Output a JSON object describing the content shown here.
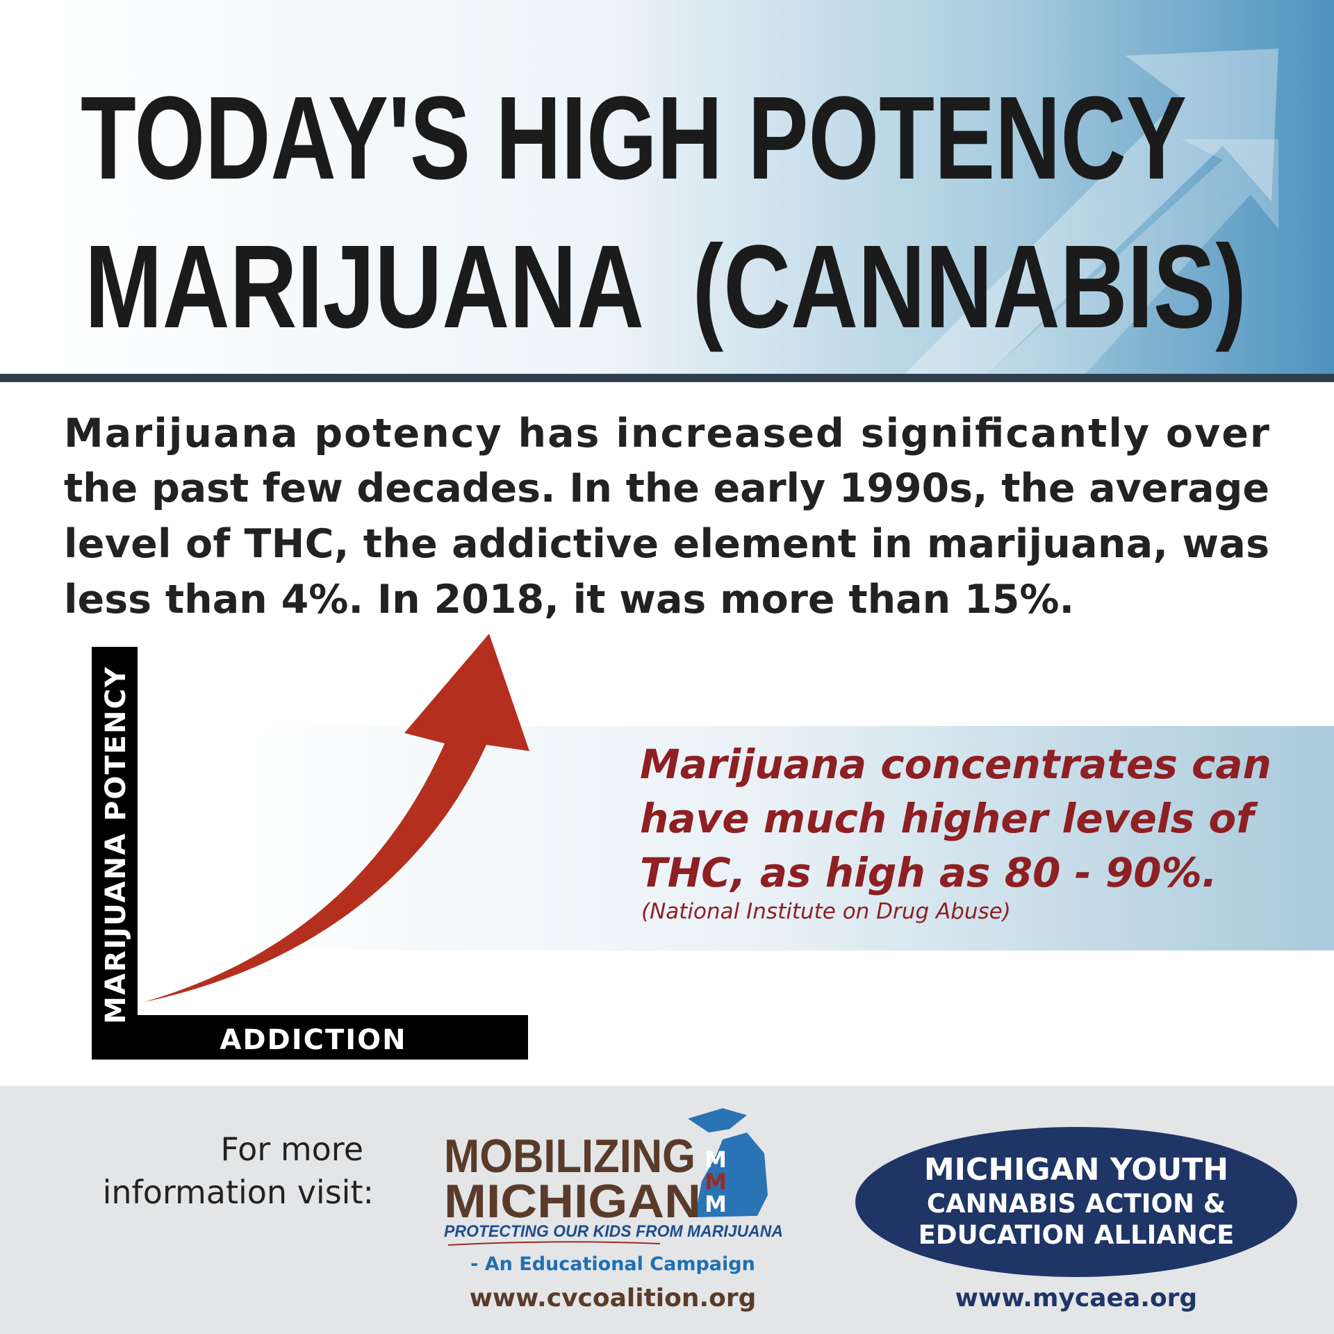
{
  "header": {
    "title_lines": [
      "TODAY'S HIGH POTENCY",
      "MARIJUANA  (CANNABIS)"
    ]
  },
  "intro": {
    "lines": [
      "Marijuana potency has increased significantly over",
      "the past few decades. In the early 1990s, the average",
      "level of THC, the addictive element in marijuana, was",
      "less than 4%. In 2018, it was more than 15%."
    ]
  },
  "diagram": {
    "y_axis_label": "MARIJUANA POTENCY",
    "x_axis_label": "ADDICTION"
  },
  "callout": {
    "lines": [
      "Marijuana concentrates can",
      "have much higher levels of",
      "THC, as high as 80 - 90%."
    ],
    "source": "(National Institute on Drug Abuse)"
  },
  "footer": {
    "prompt_lines": [
      "For more",
      "information visit:"
    ],
    "campaign": {
      "name_lines": [
        "MOBILIZING",
        "MICHIGAN"
      ],
      "mark": "M",
      "tagline": "PROTECTING OUR KIDS FROM MARIJUANA",
      "subtitle": "- An Educational Campaign",
      "url": "www.cvcoalition.org"
    },
    "alliance": {
      "name_lines": [
        "MICHIGAN YOUTH",
        "CANNABIS ACTION &",
        "EDUCATION ALLIANCE"
      ],
      "url": "www.mycaea.org"
    }
  }
}
